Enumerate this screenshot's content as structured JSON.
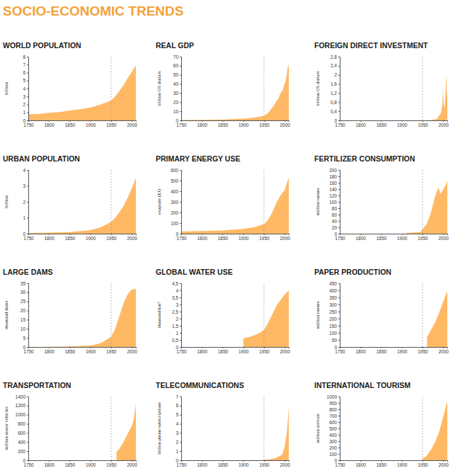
{
  "title": "SOCIO-ECONOMIC TRENDS",
  "chart_data": [
    {
      "type": "area",
      "title": "WORLD POPULATION",
      "y_label": "billion",
      "color": "#ffb964",
      "x": [
        1750,
        1775,
        1800,
        1825,
        1850,
        1875,
        1900,
        1925,
        1950,
        1960,
        1970,
        1980,
        1990,
        2000,
        2010
      ],
      "values": [
        0.75,
        0.8,
        0.95,
        1.05,
        1.25,
        1.4,
        1.6,
        2.0,
        2.5,
        3.0,
        3.7,
        4.4,
        5.3,
        6.1,
        6.9
      ],
      "xlim": [
        1750,
        2010
      ],
      "xticks": [
        1750,
        1800,
        1850,
        1900,
        1950,
        2000
      ],
      "ylim": [
        0,
        8
      ],
      "yticks": [
        0,
        1,
        2,
        3,
        4,
        5,
        6,
        7,
        8
      ],
      "reference_line": 1950
    },
    {
      "type": "area",
      "title": "REAL GDP",
      "y_label": "trillion US dollars",
      "color": "#ffb964",
      "x": [
        1750,
        1800,
        1850,
        1900,
        1925,
        1950,
        1955,
        1960,
        1965,
        1970,
        1975,
        1980,
        1985,
        1990,
        1995,
        2000,
        2003,
        2005,
        2008,
        2009,
        2010
      ],
      "values": [
        0.4,
        0.6,
        1,
        2,
        3,
        5,
        6.5,
        8,
        11,
        14,
        17,
        21,
        24,
        30,
        33,
        40,
        44,
        50,
        60,
        58,
        65
      ],
      "xlim": [
        1750,
        2010
      ],
      "xticks": [
        1750,
        1800,
        1850,
        1900,
        1950,
        2000
      ],
      "ylim": [
        0,
        70
      ],
      "yticks": [
        0,
        10,
        20,
        30,
        40,
        50,
        60,
        70
      ],
      "reference_line": 1950
    },
    {
      "type": "area",
      "title": "FOREIGN DIRECT INVESTMENT",
      "y_label": "trillion US dollars",
      "color": "#ffb964",
      "x": [
        1750,
        1950,
        1970,
        1980,
        1985,
        1990,
        1995,
        1998,
        2000,
        2001,
        2002,
        2003,
        2004,
        2005,
        2006,
        2007,
        2008,
        2009,
        2010
      ],
      "values": [
        0,
        0,
        0.01,
        0.05,
        0.06,
        0.2,
        0.35,
        0.7,
        1.4,
        0.8,
        0.6,
        0.55,
        0.7,
        1.0,
        1.4,
        2.0,
        1.7,
        1.1,
        1.2
      ],
      "xlim": [
        1750,
        2010
      ],
      "xticks": [
        1750,
        1800,
        1850,
        1900,
        1950,
        2000
      ],
      "ylim": [
        0,
        2.8
      ],
      "yticks": [
        0,
        {
          "value": 0.4,
          "label": "0,4"
        },
        {
          "value": 0.8,
          "label": "0,8"
        },
        {
          "value": 1.2,
          "label": "1,2"
        },
        {
          "value": 1.6,
          "label": "1,6"
        },
        2,
        {
          "value": 2.4,
          "label": "2,4"
        },
        {
          "value": 2.8,
          "label": "2,8"
        }
      ],
      "reference_line": 1950
    },
    {
      "type": "area",
      "title": "URBAN POPULATION",
      "y_label": "billion",
      "color": "#ffb964",
      "x": [
        1750,
        1800,
        1850,
        1900,
        1925,
        1950,
        1960,
        1970,
        1980,
        1990,
        2000,
        2010
      ],
      "values": [
        0.05,
        0.07,
        0.1,
        0.22,
        0.4,
        0.75,
        1.0,
        1.35,
        1.75,
        2.25,
        2.85,
        3.5
      ],
      "xlim": [
        1750,
        2010
      ],
      "xticks": [
        1750,
        1800,
        1850,
        1900,
        1950,
        2000
      ],
      "ylim": [
        0,
        4
      ],
      "yticks": [
        0,
        1,
        2,
        3,
        4
      ],
      "reference_line": 1950
    },
    {
      "type": "area",
      "title": "PRIMARY ENERGY USE",
      "y_label": "exajoule (EJ)",
      "color": "#ffb964",
      "x": [
        1750,
        1800,
        1850,
        1900,
        1925,
        1950,
        1960,
        1970,
        1980,
        1990,
        2000,
        2005,
        2010
      ],
      "values": [
        20,
        25,
        30,
        45,
        60,
        90,
        130,
        200,
        290,
        360,
        410,
        470,
        530
      ],
      "xlim": [
        1750,
        2010
      ],
      "xticks": [
        1750,
        1800,
        1850,
        1900,
        1950,
        2000
      ],
      "ylim": [
        0,
        600
      ],
      "yticks": [
        0,
        100,
        200,
        300,
        400,
        500,
        600
      ],
      "reference_line": 1950
    },
    {
      "type": "area",
      "title": "FERTILIZER CONSUMPTION",
      "y_label": "million tonnes",
      "color": "#ffb964",
      "x": [
        1910,
        1930,
        1945,
        1950,
        1960,
        1970,
        1980,
        1988,
        1990,
        1993,
        1995,
        2000,
        2005,
        2008,
        2010
      ],
      "values": [
        2,
        4,
        5,
        14,
        30,
        65,
        115,
        145,
        140,
        125,
        128,
        138,
        150,
        160,
        165
      ],
      "xlim": [
        1750,
        2010
      ],
      "xticks": [
        1750,
        1800,
        1850,
        1900,
        1950,
        2000
      ],
      "ylim": [
        0,
        200
      ],
      "yticks": [
        0,
        20,
        40,
        60,
        80,
        100,
        120,
        140,
        160,
        180,
        200
      ],
      "reference_line": 1950
    },
    {
      "type": "area",
      "title": "LARGE DAMS",
      "y_label": "thousand dams",
      "color": "#ffb964",
      "x": [
        1750,
        1800,
        1850,
        1900,
        1925,
        1950,
        1960,
        1970,
        1980,
        1990,
        2000,
        2010
      ],
      "values": [
        0,
        0.1,
        0.3,
        0.8,
        2,
        5.5,
        10,
        17,
        24,
        29,
        31.5,
        32
      ],
      "xlim": [
        1750,
        2010
      ],
      "xticks": [
        1750,
        1800,
        1850,
        1900,
        1950,
        2000
      ],
      "ylim": [
        0,
        35
      ],
      "yticks": [
        0,
        5,
        10,
        15,
        20,
        25,
        30,
        35
      ],
      "reference_line": 1950
    },
    {
      "type": "area",
      "title": "GLOBAL WATER USE",
      "y_label": "thousand km³",
      "color": "#ffb964",
      "x": [
        1900,
        1920,
        1940,
        1950,
        1960,
        1970,
        1980,
        1985,
        1990,
        1995,
        2000,
        2005,
        2010
      ],
      "values": [
        0.6,
        0.75,
        1.0,
        1.2,
        1.7,
        2.3,
        2.9,
        3.1,
        3.3,
        3.5,
        3.7,
        3.85,
        4.0
      ],
      "xlim": [
        1750,
        2010
      ],
      "xticks": [
        1750,
        1800,
        1850,
        1900,
        1950,
        2000
      ],
      "ylim": [
        0,
        4.5
      ],
      "yticks": [
        0,
        {
          "value": 0.5,
          "label": "0,5"
        },
        1,
        {
          "value": 1.5,
          "label": "1,5"
        },
        2,
        {
          "value": 2.5,
          "label": "2,5"
        },
        3,
        {
          "value": 3.5,
          "label": "3,5"
        },
        4,
        {
          "value": 4.5,
          "label": "4,5"
        }
      ],
      "reference_line": 1950
    },
    {
      "type": "area",
      "title": "PAPER PRODUCTION",
      "y_label": "million tonnes",
      "color": "#ffb964",
      "x": [
        1961,
        1970,
        1980,
        1990,
        2000,
        2005,
        2010
      ],
      "values": [
        70,
        120,
        170,
        240,
        320,
        360,
        390
      ],
      "xlim": [
        1750,
        2010
      ],
      "xticks": [
        1750,
        1800,
        1850,
        1900,
        1950,
        2000
      ],
      "ylim": [
        0,
        450
      ],
      "yticks": [
        0,
        50,
        100,
        150,
        200,
        250,
        300,
        350,
        400,
        450
      ],
      "reference_line": 1950
    },
    {
      "type": "area",
      "title": "TRANSPORTATION",
      "y_label": "million motor vehicles",
      "color": "#ffb964",
      "x": [
        1963,
        1970,
        1980,
        1990,
        2000,
        2005,
        2010
      ],
      "values": [
        180,
        250,
        400,
        580,
        750,
        900,
        1250
      ],
      "xlim": [
        1750,
        2010
      ],
      "xticks": [
        1750,
        1800,
        1850,
        1900,
        1950,
        2000
      ],
      "ylim": [
        0,
        1400
      ],
      "yticks": [
        0,
        200,
        400,
        600,
        800,
        1000,
        1200,
        1400
      ],
      "reference_line": 1950
    },
    {
      "type": "area",
      "title": "TELECOMMUNICATIONS",
      "y_label": "billion phone subscriptions",
      "color": "#ffb964",
      "x": [
        1950,
        1960,
        1970,
        1980,
        1990,
        1995,
        2000,
        2005,
        2008,
        2010
      ],
      "values": [
        0.05,
        0.1,
        0.15,
        0.3,
        0.5,
        0.7,
        1.5,
        3.0,
        4.5,
        6.0
      ],
      "xlim": [
        1750,
        2010
      ],
      "xticks": [
        1750,
        1800,
        1850,
        1900,
        1950,
        2000
      ],
      "ylim": [
        0,
        7
      ],
      "yticks": [
        0,
        1,
        2,
        3,
        4,
        5,
        6,
        7
      ],
      "reference_line": 1950
    },
    {
      "type": "area",
      "title": "INTERNATIONAL TOURISM",
      "y_label": "million arrivals",
      "color": "#ffb964",
      "x": [
        1950,
        1960,
        1970,
        1980,
        1990,
        2000,
        2005,
        2008,
        2009,
        2010
      ],
      "values": [
        25,
        70,
        160,
        280,
        440,
        680,
        800,
        900,
        870,
        940
      ],
      "xlim": [
        1750,
        2010
      ],
      "xticks": [
        1750,
        1800,
        1850,
        1900,
        1950,
        2000
      ],
      "ylim": [
        0,
        1000
      ],
      "yticks": [
        0,
        100,
        200,
        300,
        400,
        500,
        600,
        700,
        800,
        900,
        1000
      ],
      "reference_line": 1950
    }
  ]
}
